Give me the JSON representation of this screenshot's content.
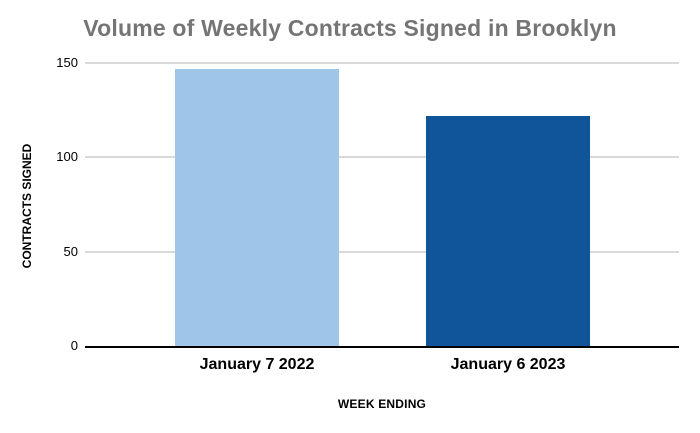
{
  "chart_data": {
    "type": "bar",
    "title": "Volume of Weekly Contracts Signed in Brooklyn",
    "categories": [
      "January 7 2022",
      "January 6 2023"
    ],
    "values": [
      147,
      122
    ],
    "bar_colors": [
      "#9fc5e8",
      "#10549a"
    ],
    "xlabel": "WEEK ENDING",
    "ylabel": "CONTRACTS SIGNED",
    "ylim": [
      0,
      150
    ],
    "yticks": [
      0,
      50,
      100,
      150
    ],
    "grid": true,
    "legend": "none",
    "colors": {
      "title": "#757575",
      "gridline": "#d9d9d9",
      "axis_line": "#000000",
      "tick_label": "#000000",
      "background": "#ffffff"
    }
  }
}
